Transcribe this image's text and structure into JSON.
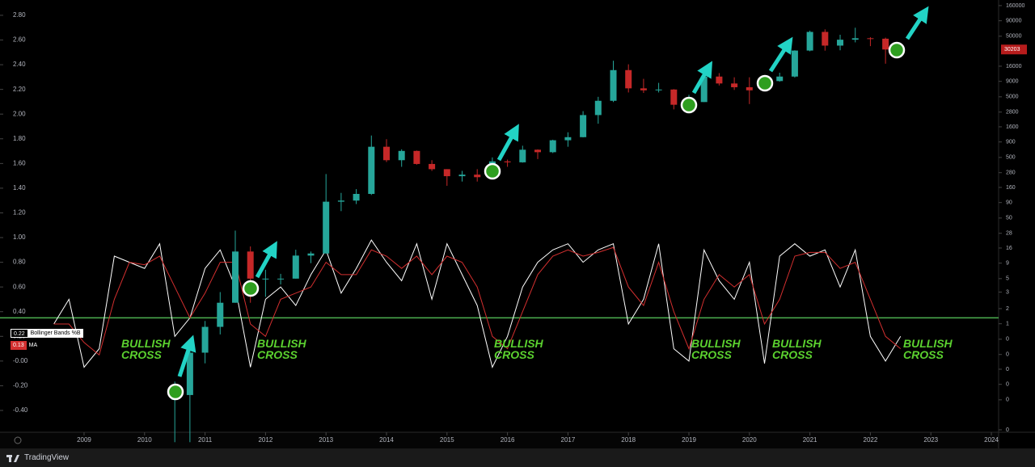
{
  "chart_data": [
    {
      "type": "candlestick",
      "log_scale": true,
      "up_color": "#26a69a",
      "down_color": "#c62828",
      "xlim": [
        2007.61,
        2024.12
      ],
      "xticks": [
        2009,
        2010,
        2011,
        2012,
        2013,
        2014,
        2015,
        2016,
        2017,
        2018,
        2019,
        2020,
        2021,
        2022,
        2023,
        2024
      ],
      "ylim": [
        0.017,
        198000
      ],
      "yticks": [
        160000,
        90000,
        50000,
        16000,
        9000,
        5000,
        2800,
        1600,
        900,
        500,
        280,
        160,
        90,
        50,
        28,
        16,
        9,
        5,
        3,
        {
          "value": 1.6,
          "label": "2"
        },
        {
          "value": 0.9,
          "label": "1"
        },
        {
          "value": 0.5,
          "label": "0"
        },
        {
          "value": 0.28,
          "label": "0"
        },
        {
          "value": 0.16,
          "label": "0"
        },
        {
          "value": 0.09,
          "label": "0"
        },
        {
          "value": 0.05,
          "label": "0"
        },
        {
          "value": 0.016,
          "label": "0"
        }
      ],
      "last_price": 30203,
      "x": [
        2010.5,
        2010.75,
        2011,
        2011.25,
        2011.5,
        2011.75,
        2012,
        2012.25,
        2012.5,
        2012.75,
        2013,
        2013.25,
        2013.5,
        2013.75,
        2014,
        2014.25,
        2014.5,
        2014.75,
        2015,
        2015.25,
        2015.5,
        2015.75,
        2016,
        2016.25,
        2016.5,
        2016.75,
        2017,
        2017.25,
        2017.5,
        2017.75,
        2018,
        2018.25,
        2018.5,
        2018.75,
        2019,
        2019.25,
        2019.5,
        2019.75,
        2020,
        2020.25,
        2020.5,
        2020.75,
        2021,
        2021.25,
        2021.5,
        2021.75,
        2022,
        2022.25
      ],
      "open": [
        0.05,
        0.06,
        0.3,
        0.8,
        2,
        14,
        5,
        5,
        5,
        12,
        13,
        93,
        97,
        125,
        750,
        450,
        640,
        390,
        320,
        245,
        260,
        236,
        430,
        415,
        670,
        610,
        960,
        1080,
        2500,
        4300,
        13800,
        6900,
        6400,
        6600,
        3700,
        4100,
        10800,
        8300,
        7200,
        6400,
        9100,
        10800,
        29000,
        58900,
        35000,
        43800,
        46300,
        45500
      ],
      "high": [
        0.1,
        0.5,
        1,
        3,
        31,
        17,
        7,
        6,
        15,
        14,
        266,
        130,
        150,
        1150,
        1000,
        680,
        650,
        450,
        320,
        300,
        320,
        500,
        460,
        780,
        680,
        980,
        1300,
        2900,
        5000,
        19700,
        17200,
        9900,
        8500,
        6700,
        5400,
        13800,
        12300,
        10500,
        10500,
        10400,
        12500,
        29300,
        61800,
        64900,
        52900,
        69000,
        48200,
        47400
      ],
      "low": [
        0.01,
        0.01,
        0.2,
        0.6,
        2,
        2,
        2.5,
        4,
        5,
        9,
        13,
        65,
        85,
        120,
        420,
        350,
        380,
        300,
        170,
        200,
        200,
        230,
        350,
        410,
        470,
        590,
        750,
        1070,
        1800,
        4100,
        5900,
        5800,
        5900,
        3100,
        3400,
        4100,
        7700,
        6500,
        3800,
        6200,
        8900,
        10400,
        28200,
        28900,
        29300,
        39600,
        34300,
        17600
      ],
      "close": [
        0.06,
        0.3,
        0.8,
        2,
        14,
        5,
        5,
        5,
        12,
        13,
        93,
        97,
        125,
        750,
        450,
        640,
        390,
        320,
        245,
        260,
        236,
        430,
        415,
        670,
        610,
        960,
        1080,
        2500,
        4300,
        13800,
        6900,
        6400,
        6600,
        3700,
        4100,
        10800,
        8300,
        7200,
        6400,
        9100,
        10800,
        29000,
        58900,
        35000,
        43800,
        46300,
        45500,
        30203
      ]
    },
    {
      "type": "line",
      "xlim": [
        2007.61,
        2024.12
      ],
      "ylim": [
        -0.544,
        2.924
      ],
      "yticks": [
        {
          "value": 2.8,
          "label": "2.80"
        },
        {
          "value": 2.6,
          "label": "2.60"
        },
        {
          "value": 2.4,
          "label": "2.40"
        },
        {
          "value": 2.2,
          "label": "2.20"
        },
        {
          "value": 2.0,
          "label": "2.00"
        },
        {
          "value": 1.8,
          "label": "1.80"
        },
        {
          "value": 1.6,
          "label": "1.60"
        },
        {
          "value": 1.4,
          "label": "1.40"
        },
        {
          "value": 1.2,
          "label": "1.20"
        },
        {
          "value": 1.0,
          "label": "1.00"
        },
        {
          "value": 0.8,
          "label": "0.80"
        },
        {
          "value": 0.6,
          "label": "0.60"
        },
        {
          "value": 0.4,
          "label": "0.40"
        },
        {
          "value": 0.2,
          "label": "0.20"
        },
        {
          "value": 0,
          "label": "-0.00"
        },
        {
          "value": -0.2,
          "label": "-0.20"
        },
        {
          "value": -0.4,
          "label": "-0.40"
        }
      ],
      "hline": {
        "value": 0.35,
        "color": "#4caf50"
      },
      "x": [
        2008.5,
        2008.75,
        2009,
        2009.25,
        2009.5,
        2009.75,
        2010,
        2010.25,
        2010.5,
        2010.75,
        2011,
        2011.25,
        2011.5,
        2011.75,
        2012,
        2012.25,
        2012.5,
        2012.75,
        2013,
        2013.25,
        2013.5,
        2013.75,
        2014,
        2014.25,
        2014.5,
        2014.75,
        2015,
        2015.25,
        2015.5,
        2015.75,
        2016,
        2016.25,
        2016.5,
        2016.75,
        2017,
        2017.25,
        2017.5,
        2017.75,
        2018,
        2018.25,
        2018.5,
        2018.75,
        2019,
        2019.25,
        2019.5,
        2019.75,
        2020,
        2020.25,
        2020.5,
        2020.75,
        2021,
        2021.25,
        2021.5,
        2021.75,
        2022,
        2022.25,
        2022.5
      ],
      "series": [
        {
          "name": "Bollinger Bands %B",
          "color": "#ffffff",
          "last_value": 0.22,
          "values": [
            0.3,
            0.5,
            -0.05,
            0.1,
            0.85,
            0.8,
            0.75,
            0.95,
            0.2,
            0.35,
            0.75,
            0.9,
            0.6,
            -0.05,
            0.5,
            0.6,
            0.45,
            0.7,
            0.9,
            0.55,
            0.75,
            0.98,
            0.8,
            0.65,
            0.95,
            0.5,
            0.95,
            0.7,
            0.45,
            -0.05,
            0.2,
            0.6,
            0.8,
            0.9,
            0.95,
            0.8,
            0.9,
            0.95,
            0.3,
            0.5,
            0.95,
            0.1,
            0.0,
            0.9,
            0.65,
            0.5,
            0.8,
            -0.02,
            0.85,
            0.95,
            0.85,
            0.9,
            0.6,
            0.9,
            0.2,
            0.0,
            0.2
          ]
        },
        {
          "name": "MA",
          "color": "#d32f2f",
          "last_value": 0.13,
          "values": [
            0.3,
            0.3,
            0.15,
            0.05,
            0.5,
            0.8,
            0.78,
            0.85,
            0.6,
            0.35,
            0.55,
            0.8,
            0.8,
            0.3,
            0.2,
            0.5,
            0.55,
            0.6,
            0.8,
            0.7,
            0.7,
            0.9,
            0.85,
            0.75,
            0.85,
            0.7,
            0.85,
            0.8,
            0.6,
            0.2,
            0.1,
            0.4,
            0.7,
            0.85,
            0.9,
            0.85,
            0.88,
            0.92,
            0.6,
            0.45,
            0.8,
            0.4,
            0.1,
            0.5,
            0.7,
            0.6,
            0.7,
            0.3,
            0.5,
            0.85,
            0.88,
            0.88,
            0.75,
            0.8,
            0.5,
            0.2,
            0.1
          ]
        }
      ],
      "annotations": [
        "BULLISH CROSS",
        "BULLISH CROSS",
        "BULLISH CROSS",
        "BULLISH CROSS",
        "BULLISH CROSS",
        "BULLISH CROSS"
      ]
    }
  ],
  "footer": {
    "brand": "TradingView"
  }
}
